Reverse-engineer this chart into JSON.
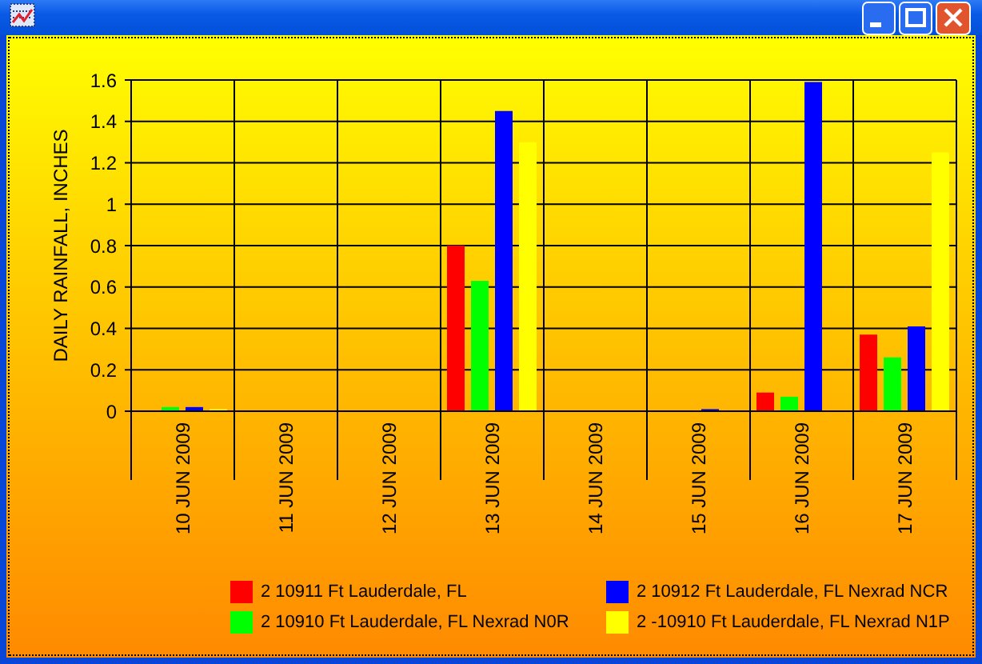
{
  "chart_data": {
    "type": "bar",
    "ylabel": "DAILY RAINFALL, INCHES",
    "categories": [
      "10 JUN 2009",
      "11 JUN 2009",
      "12 JUN 2009",
      "13 JUN 2009",
      "14 JUN 2009",
      "15 JUN 2009",
      "16 JUN 2009",
      "17 JUN 2009"
    ],
    "series": [
      {
        "name": "2 10911 Ft Lauderdale, FL",
        "color": "#ff0000",
        "values": [
          0,
          0,
          0,
          0.8,
          0,
          0,
          0.09,
          0.37
        ]
      },
      {
        "name": "2 10910 Ft Lauderdale, FL Nexrad N0R",
        "color": "#00ff00",
        "values": [
          0.02,
          0,
          0,
          0.63,
          0,
          0,
          0.07,
          0.26
        ]
      },
      {
        "name": "2 10912 Ft Lauderdale, FL Nexrad NCR",
        "color": "#0000ff",
        "values": [
          0.02,
          0,
          0,
          1.45,
          0,
          0.01,
          1.59,
          0.41
        ]
      },
      {
        "name": "2 -10910 Ft Lauderdale, FL Nexrad N1P",
        "color": "#ffff00",
        "values": [
          0.01,
          0,
          0,
          1.3,
          0,
          0,
          0,
          1.25
        ]
      }
    ],
    "ylim": [
      0,
      1.6
    ],
    "yticks": [
      0,
      0.2,
      0.4,
      0.6,
      0.8,
      1,
      1.2,
      1.4,
      1.6
    ],
    "grid": true,
    "legend": "bottom"
  }
}
